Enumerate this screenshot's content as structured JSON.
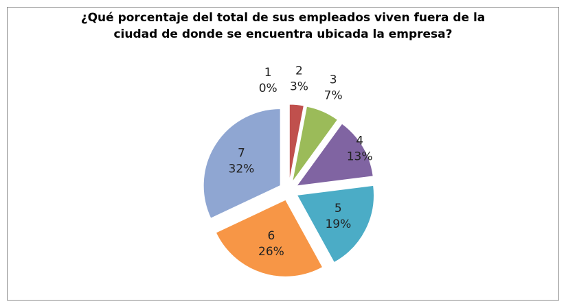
{
  "chart_data": {
    "type": "pie",
    "title": "¿Qué porcentaje del total de sus empleados viven fuera de la ciudad de donde se encuentra ubicada la empresa?",
    "categories": [
      "1",
      "2",
      "3",
      "4",
      "5",
      "6",
      "7"
    ],
    "values": [
      0,
      3,
      7,
      13,
      19,
      26,
      32
    ],
    "value_labels": [
      "0%",
      "3%",
      "7%",
      "13%",
      "19%",
      "26%",
      "32%"
    ],
    "colors": [
      "#4f81bd",
      "#c0504d",
      "#9bbb59",
      "#8064a2",
      "#4bacc6",
      "#f79646",
      "#8fa6d2"
    ],
    "exploded": true
  }
}
